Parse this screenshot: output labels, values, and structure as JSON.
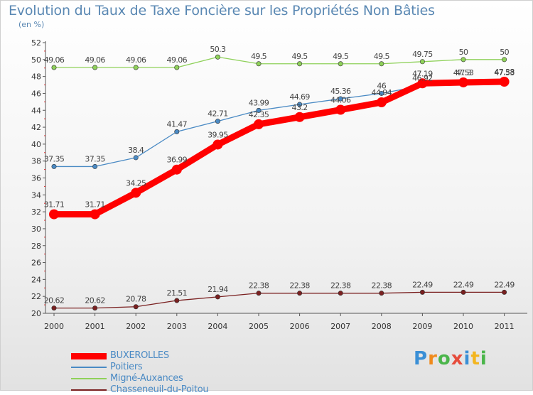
{
  "title": "Evolution du Taux de Taxe Foncière sur les Propriétés Non Bâties",
  "unit": "(en %)",
  "logo": {
    "chars": [
      "P",
      "r",
      "o",
      "x",
      "i",
      "t",
      "i"
    ],
    "colors": [
      "#3a8fd6",
      "#f08a1c",
      "#4ab54a",
      "#e64c3c",
      "#3a8fd6",
      "#f3b51f",
      "#4ab54a"
    ]
  },
  "chart_data": {
    "type": "line",
    "title": "Evolution du Taux de Taxe Foncière sur les Propriétés Non Bâties",
    "ylabel": "(en %)",
    "xlabel": "",
    "ylim": [
      20,
      52
    ],
    "ytick_step": 2,
    "x": [
      "2000",
      "2001",
      "2002",
      "2003",
      "2004",
      "2005",
      "2006",
      "2007",
      "2008",
      "2009",
      "2010",
      "2011"
    ],
    "series": [
      {
        "name": "BUXEROLLES",
        "color": "#ff0000",
        "values": [
          31.71,
          31.71,
          34.25,
          36.99,
          39.95,
          42.35,
          43.2,
          44.06,
          44.94,
          47.19,
          47.3,
          47.38
        ],
        "labels": [
          "31.71",
          "31.71",
          "34.25",
          "36.99",
          "39.95",
          "42.35",
          "43.2",
          "44.06",
          "44.94",
          "47.19",
          "47.3",
          "47.38"
        ]
      },
      {
        "name": "Poitiers",
        "color": "#4a8ac4",
        "values": [
          37.35,
          37.35,
          38.4,
          41.47,
          42.71,
          43.99,
          44.69,
          45.36,
          46,
          46.92,
          47.53,
          47.53
        ],
        "labels": [
          "37.35",
          "37.35",
          "38.4",
          "41.47",
          "42.71",
          "43.99",
          "44.69",
          "45.36",
          "46",
          "46.92",
          "47.53",
          "47.53"
        ]
      },
      {
        "name": "Migné-Auxances",
        "color": "#8fd15a",
        "values": [
          49.06,
          49.06,
          49.06,
          49.06,
          50.3,
          49.5,
          49.5,
          49.5,
          49.5,
          49.75,
          50,
          50
        ],
        "labels": [
          "49.06",
          "49.06",
          "49.06",
          "49.06",
          "50.3",
          "49.5",
          "49.5",
          "49.5",
          "49.5",
          "49.75",
          "50",
          "50"
        ]
      },
      {
        "name": "Chasseneuil-du-Poitou",
        "color": "#7a2020",
        "values": [
          20.62,
          20.62,
          20.78,
          21.51,
          21.94,
          22.38,
          22.38,
          22.38,
          22.38,
          22.49,
          22.49,
          22.49
        ],
        "labels": [
          "20.62",
          "20.62",
          "20.78",
          "21.51",
          "21.94",
          "22.38",
          "22.38",
          "22.38",
          "22.38",
          "22.49",
          "22.49",
          "22.49"
        ]
      }
    ],
    "legend": [
      "BUXEROLLES",
      "Poitiers",
      "Migné-Auxances",
      "Chasseneuil-du-Poitou"
    ],
    "legend_position": "bottom-left",
    "grid": false
  }
}
